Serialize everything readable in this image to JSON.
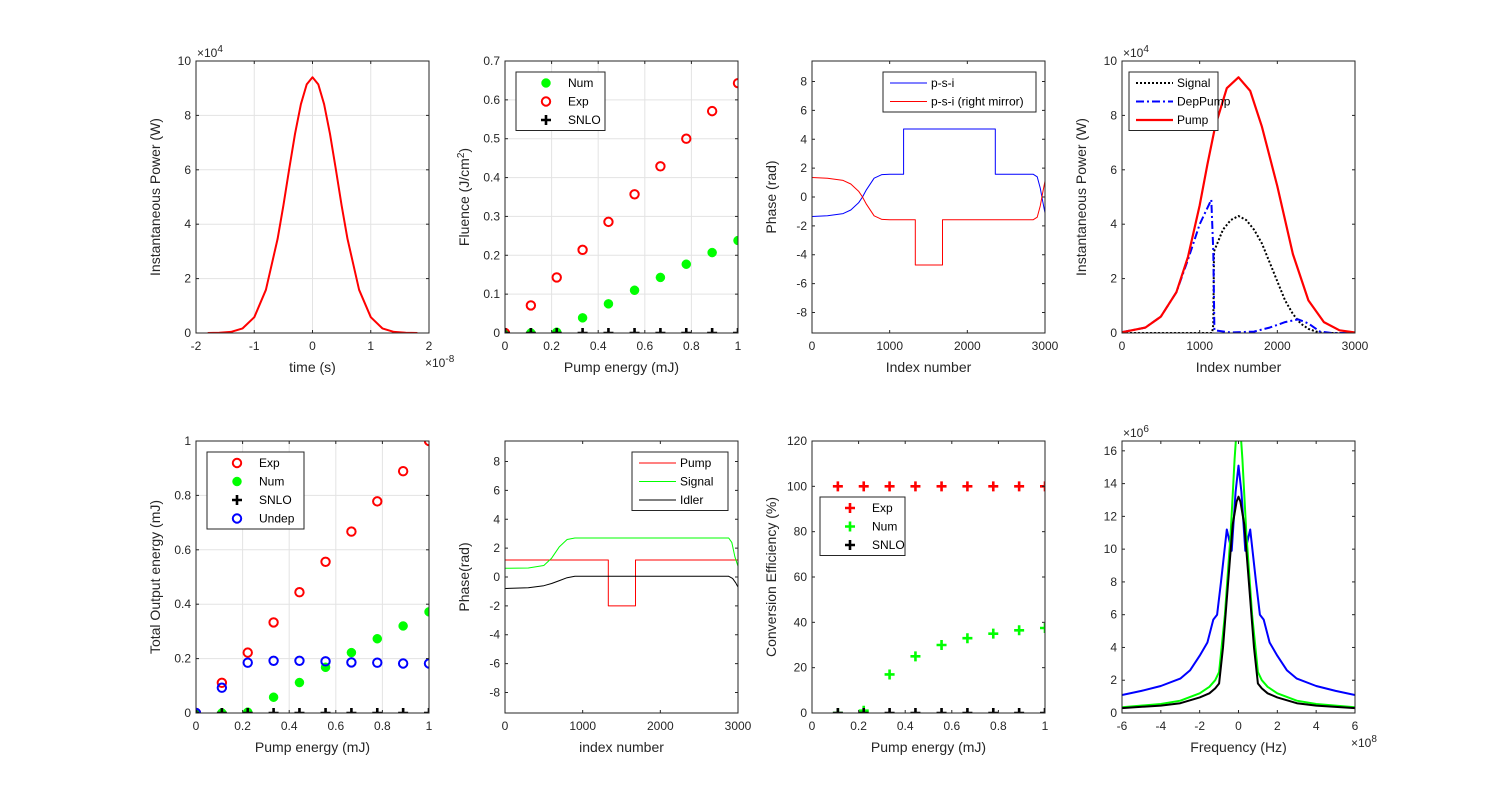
{
  "chart_data": [
    {
      "type": "line",
      "xlabel": "time (s)",
      "ylabel": "Instantaneous Power (W)",
      "xlim": [
        -2,
        2
      ],
      "ylim": [
        0,
        10
      ],
      "xticks": [
        -2,
        -1,
        0,
        1,
        2
      ],
      "yticks": [
        0,
        2,
        4,
        6,
        8,
        10
      ],
      "xexp": "-8",
      "yexp": "4",
      "grid": true,
      "legend": null,
      "series": [
        {
          "color": "#ff0000",
          "style": "solid",
          "width": 2,
          "x": [
            -1.8,
            -1.6,
            -1.4,
            -1.2,
            -1.0,
            -0.8,
            -0.6,
            -0.5,
            -0.4,
            -0.3,
            -0.2,
            -0.1,
            0,
            0.1,
            0.2,
            0.3,
            0.4,
            0.5,
            0.6,
            0.8,
            1.0,
            1.2,
            1.4,
            1.6,
            1.8
          ],
          "y": [
            0,
            0.01,
            0.04,
            0.17,
            0.58,
            1.59,
            3.46,
            4.69,
            6.03,
            7.32,
            8.41,
            9.14,
            9.4,
            9.14,
            8.41,
            7.32,
            6.03,
            4.69,
            3.46,
            1.59,
            0.58,
            0.17,
            0.04,
            0.01,
            0
          ]
        }
      ]
    },
    {
      "type": "scatter",
      "xlabel": "Pump energy (mJ)",
      "ylabel": "Fluence (J/cm^2)",
      "xlim": [
        0,
        1
      ],
      "ylim": [
        0,
        0.7
      ],
      "xticks": [
        0,
        0.2,
        0.4,
        0.6,
        0.8,
        1
      ],
      "yticks": [
        0,
        0.1,
        0.2,
        0.3,
        0.4,
        0.5,
        0.6,
        0.7
      ],
      "grid": true,
      "legend": {
        "location": "northwest",
        "entries": [
          "Num",
          "Exp",
          "SNLO"
        ]
      },
      "series": [
        {
          "name": "Num",
          "color": "#00ff00",
          "marker": "dot",
          "x": [
            0,
            0.111,
            0.222,
            0.333,
            0.444,
            0.556,
            0.667,
            0.778,
            0.889,
            1
          ],
          "y": [
            0,
            0,
            0.002,
            0.039,
            0.075,
            0.11,
            0.143,
            0.177,
            0.207,
            0.238
          ]
        },
        {
          "name": "Exp",
          "color": "#ff0000",
          "marker": "circle",
          "x": [
            0,
            0.111,
            0.222,
            0.333,
            0.444,
            0.556,
            0.667,
            0.778,
            0.889,
            1
          ],
          "y": [
            0,
            0.071,
            0.143,
            0.214,
            0.286,
            0.357,
            0.429,
            0.5,
            0.571,
            0.643
          ]
        },
        {
          "name": "SNLO",
          "color": "#000000",
          "marker": "plus",
          "x": [
            0,
            0.111,
            0.222,
            0.333,
            0.444,
            0.556,
            0.667,
            0.778,
            0.889,
            1
          ],
          "y": [
            0,
            0,
            0,
            0,
            0,
            0,
            0,
            0,
            0,
            0
          ]
        }
      ]
    },
    {
      "type": "line",
      "xlabel": "Index number",
      "ylabel": "Phase (rad)",
      "xlim": [
        0,
        3000
      ],
      "ylim": [
        -9.42,
        9.42
      ],
      "xticks": [
        0,
        1000,
        2000,
        3000
      ],
      "yticks": [
        -8,
        -6,
        -4,
        -2,
        0,
        2,
        4,
        6,
        8
      ],
      "grid": false,
      "legend": {
        "location": "northeast",
        "entries": [
          "p-s-i",
          "p-s-i (right mirror)"
        ]
      },
      "series": [
        {
          "name": "p-s-i",
          "color": "#0000ff",
          "style": "solid",
          "width": 1,
          "x": [
            0,
            200,
            400,
            500,
            600,
            650,
            700,
            800,
            900,
            1000,
            1180,
            1180,
            2360,
            2360,
            2850,
            2900,
            2940,
            2970,
            3000
          ],
          "y": [
            -1.35,
            -1.3,
            -1.15,
            -0.9,
            -0.4,
            0,
            0.5,
            1.3,
            1.55,
            1.57,
            1.57,
            4.71,
            4.71,
            1.57,
            1.57,
            1.4,
            0.6,
            -0.3,
            -1.1
          ]
        },
        {
          "name": "p-s-i (right mirror)",
          "color": "#ff0000",
          "style": "solid",
          "width": 1,
          "x": [
            0,
            200,
            400,
            500,
            600,
            650,
            700,
            800,
            900,
            1000,
            1330,
            1330,
            1680,
            1680,
            2850,
            2900,
            2940,
            2970,
            3000
          ],
          "y": [
            1.35,
            1.3,
            1.15,
            0.9,
            0.4,
            0,
            -0.5,
            -1.3,
            -1.55,
            -1.57,
            -1.57,
            -4.71,
            -4.71,
            -1.57,
            -1.57,
            -1.4,
            -0.6,
            0.3,
            1.1
          ]
        }
      ]
    },
    {
      "type": "line",
      "xlabel": "Index number",
      "ylabel": "Instantaneous Power (W)",
      "xlim": [
        0,
        3000
      ],
      "ylim": [
        0,
        10
      ],
      "xticks": [
        0,
        1000,
        2000,
        3000
      ],
      "yticks": [
        0,
        2,
        4,
        6,
        8,
        10
      ],
      "yexp": "4",
      "grid": false,
      "legend": {
        "location": "northwest",
        "entries": [
          "Signal",
          "DepPump",
          "Pump"
        ]
      },
      "series": [
        {
          "name": "Signal",
          "color": "#000000",
          "style": "dotted",
          "width": 2,
          "x": [
            0,
            1160,
            1175,
            1185,
            1300,
            1400,
            1500,
            1600,
            1700,
            1800,
            1900,
            2000,
            2100,
            2200,
            2300,
            2400,
            2500,
            2600,
            3000
          ],
          "y": [
            0,
            0,
            0.3,
            3.0,
            3.8,
            4.15,
            4.3,
            4.15,
            3.8,
            3.3,
            2.6,
            1.9,
            1.2,
            0.7,
            0.35,
            0.15,
            0.05,
            0,
            0
          ]
        },
        {
          "name": "DepPump",
          "color": "#0000ff",
          "style": "dashdot",
          "width": 2,
          "x": [
            0,
            300,
            500,
            700,
            850,
            1000,
            1100,
            1150,
            1175,
            1190,
            1400,
            1700,
            1900,
            2100,
            2270,
            2400,
            2550,
            2700,
            3000
          ],
          "y": [
            0.03,
            0.2,
            0.6,
            1.5,
            2.7,
            4.0,
            4.6,
            4.9,
            3.0,
            0.1,
            0.02,
            0.05,
            0.2,
            0.4,
            0.5,
            0.35,
            0.05,
            0,
            0
          ]
        },
        {
          "name": "Pump",
          "color": "#ff0000",
          "style": "solid",
          "width": 2.2,
          "x": [
            0,
            300,
            500,
            700,
            850,
            1000,
            1100,
            1200,
            1350,
            1500,
            1650,
            1800,
            2000,
            2200,
            2400,
            2600,
            2800,
            3000
          ],
          "y": [
            0.03,
            0.2,
            0.6,
            1.5,
            2.8,
            4.7,
            6.2,
            7.6,
            9.0,
            9.4,
            8.9,
            7.6,
            5.4,
            2.9,
            1.2,
            0.4,
            0.1,
            0.02
          ]
        }
      ]
    },
    {
      "type": "scatter",
      "xlabel": "Pump energy (mJ)",
      "ylabel": "Total Output energy (mJ)",
      "xlim": [
        0,
        1
      ],
      "ylim": [
        0,
        1
      ],
      "xticks": [
        0,
        0.2,
        0.4,
        0.6,
        0.8,
        1
      ],
      "yticks": [
        0,
        0.2,
        0.4,
        0.6,
        0.8,
        1
      ],
      "grid": true,
      "legend": {
        "location": "northwest",
        "entries": [
          "Exp",
          "Num",
          "SNLO",
          "Undep"
        ]
      },
      "series": [
        {
          "name": "Exp",
          "color": "#ff0000",
          "marker": "circle",
          "x": [
            0,
            0.111,
            0.222,
            0.333,
            0.444,
            0.556,
            0.667,
            0.778,
            0.889,
            1
          ],
          "y": [
            0,
            0.111,
            0.222,
            0.333,
            0.444,
            0.556,
            0.667,
            0.778,
            0.889,
            1.0
          ]
        },
        {
          "name": "Num",
          "color": "#00ff00",
          "marker": "dot",
          "x": [
            0,
            0.111,
            0.222,
            0.333,
            0.444,
            0.556,
            0.667,
            0.778,
            0.889,
            1
          ],
          "y": [
            0,
            0,
            0.003,
            0.058,
            0.112,
            0.168,
            0.222,
            0.273,
            0.32,
            0.372
          ]
        },
        {
          "name": "SNLO",
          "color": "#000000",
          "marker": "plus",
          "x": [
            0,
            0.111,
            0.222,
            0.333,
            0.444,
            0.556,
            0.667,
            0.778,
            0.889,
            1
          ],
          "y": [
            0,
            0,
            0,
            0,
            0,
            0,
            0,
            0,
            0,
            0
          ]
        },
        {
          "name": "Undep",
          "color": "#0000ff",
          "marker": "circle",
          "x": [
            0,
            0.111,
            0.222,
            0.333,
            0.444,
            0.556,
            0.667,
            0.778,
            0.889,
            1
          ],
          "y": [
            0,
            0.093,
            0.185,
            0.192,
            0.192,
            0.19,
            0.186,
            0.185,
            0.182,
            0.182
          ]
        }
      ]
    },
    {
      "type": "line",
      "xlabel": "index number",
      "ylabel": "Phase(rad)",
      "xlim": [
        0,
        3000
      ],
      "ylim": [
        -9.42,
        9.42
      ],
      "xticks": [
        0,
        1000,
        2000,
        3000
      ],
      "yticks": [
        -8,
        -6,
        -4,
        -2,
        0,
        2,
        4,
        6,
        8
      ],
      "grid": false,
      "legend": {
        "location": "northeast",
        "entries": [
          "Pump",
          "Signal",
          "Idler"
        ]
      },
      "series": [
        {
          "name": "Pump",
          "color": "#ff0000",
          "style": "solid",
          "width": 1,
          "x": [
            0,
            1330,
            1330,
            1680,
            1680,
            3000
          ],
          "y": [
            1.18,
            1.18,
            -2.0,
            -2.0,
            1.18,
            1.18
          ]
        },
        {
          "name": "Signal",
          "color": "#00ff00",
          "style": "solid",
          "width": 1,
          "x": [
            0,
            300,
            500,
            600,
            700,
            800,
            900,
            1000,
            2880,
            2920,
            2960,
            3000
          ],
          "y": [
            0.6,
            0.62,
            0.8,
            1.3,
            2.1,
            2.6,
            2.7,
            2.7,
            2.7,
            2.4,
            1.4,
            0.75
          ]
        },
        {
          "name": "Idler",
          "color": "#000000",
          "style": "solid",
          "width": 1,
          "x": [
            0,
            300,
            500,
            600,
            700,
            800,
            900,
            1000,
            2880,
            2930,
            2970,
            3000
          ],
          "y": [
            -0.8,
            -0.75,
            -0.6,
            -0.45,
            -0.25,
            -0.05,
            0.05,
            0.05,
            0.05,
            -0.1,
            -0.4,
            -0.7
          ]
        }
      ]
    },
    {
      "type": "scatter",
      "xlabel": "Pump energy (mJ)",
      "ylabel": "Conversion Efficiency (%)",
      "xlim": [
        0,
        1
      ],
      "ylim": [
        0,
        120
      ],
      "xticks": [
        0,
        0.2,
        0.4,
        0.6,
        0.8,
        1
      ],
      "yticks": [
        0,
        20,
        40,
        60,
        80,
        100,
        120
      ],
      "grid": false,
      "legend": {
        "location": "west",
        "entries": [
          "Exp",
          "Num",
          "SNLO"
        ]
      },
      "series": [
        {
          "name": "Exp",
          "color": "#ff0000",
          "marker": "plus",
          "x": [
            0.111,
            0.222,
            0.333,
            0.444,
            0.556,
            0.667,
            0.778,
            0.889,
            1
          ],
          "y": [
            100,
            100,
            100,
            100,
            100,
            100,
            100,
            100,
            100
          ]
        },
        {
          "name": "Num",
          "color": "#00ff00",
          "marker": "plus",
          "x": [
            0.111,
            0.222,
            0.333,
            0.444,
            0.556,
            0.667,
            0.778,
            0.889,
            1
          ],
          "y": [
            0,
            1,
            17,
            25,
            30,
            33,
            35,
            36.5,
            37.5
          ]
        },
        {
          "name": "SNLO",
          "color": "#000000",
          "marker": "plus",
          "x": [
            0.111,
            0.222,
            0.333,
            0.444,
            0.556,
            0.667,
            0.778,
            0.889,
            1
          ],
          "y": [
            0,
            0,
            0,
            0,
            0,
            0,
            0,
            0,
            0
          ]
        }
      ]
    },
    {
      "type": "line",
      "xlabel": "Frequency (Hz)",
      "ylabel": "",
      "xlim": [
        -6,
        6
      ],
      "ylim": [
        0,
        16.6
      ],
      "xticks": [
        -6,
        -4,
        -2,
        0,
        2,
        4,
        6
      ],
      "yticks": [
        0,
        2,
        4,
        6,
        8,
        10,
        12,
        14,
        16
      ],
      "xexp": "8",
      "yexp": "6",
      "grid": false,
      "legend": null,
      "series": [
        {
          "color": "#0000ff",
          "style": "solid",
          "width": 2,
          "x": [
            -6,
            -5,
            -4,
            -3,
            -2.5,
            -2,
            -1.6,
            -1.3,
            -1.1,
            -0.9,
            -0.6,
            -0.35,
            -0.15,
            0,
            0.15,
            0.35,
            0.6,
            0.9,
            1.1,
            1.3,
            1.6,
            2,
            2.5,
            3,
            4,
            5,
            6
          ],
          "y": [
            1.1,
            1.35,
            1.65,
            2.1,
            2.6,
            3.5,
            4.3,
            5.7,
            6.0,
            8.0,
            11.2,
            9.9,
            13.5,
            15.1,
            13.5,
            9.9,
            11.2,
            8.0,
            6.0,
            5.7,
            4.3,
            3.5,
            2.6,
            2.1,
            1.65,
            1.35,
            1.1
          ]
        },
        {
          "color": "#00ff00",
          "style": "solid",
          "width": 2,
          "x": [
            -6,
            -4,
            -3,
            -2,
            -1.5,
            -1.2,
            -1,
            -0.7,
            -0.4,
            -0.2,
            0,
            0.2,
            0.4,
            0.7,
            1,
            1.2,
            1.5,
            2,
            3,
            4,
            6
          ],
          "y": [
            0.35,
            0.55,
            0.75,
            1.2,
            1.6,
            2.0,
            2.5,
            6.0,
            11.0,
            15.5,
            19.0,
            15.5,
            11.0,
            6.0,
            2.5,
            2.0,
            1.6,
            1.2,
            0.75,
            0.55,
            0.35
          ]
        },
        {
          "color": "#000000",
          "style": "solid",
          "width": 2,
          "x": [
            -6,
            -4,
            -3,
            -2,
            -1.5,
            -1.2,
            -1,
            -0.8,
            -0.5,
            -0.3,
            -0.1,
            0,
            0.1,
            0.3,
            0.5,
            0.8,
            1,
            1.2,
            1.5,
            2,
            3,
            4,
            6
          ],
          "y": [
            0.3,
            0.45,
            0.6,
            0.95,
            1.2,
            1.5,
            1.8,
            4.0,
            8.5,
            11.5,
            12.9,
            13.2,
            12.9,
            11.5,
            8.5,
            4.0,
            1.8,
            1.5,
            1.2,
            0.95,
            0.6,
            0.45,
            0.3
          ]
        }
      ]
    }
  ]
}
